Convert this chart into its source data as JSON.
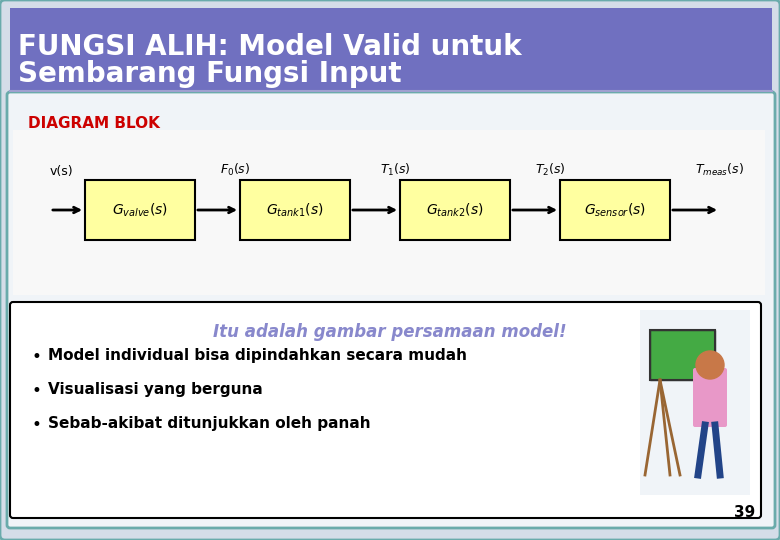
{
  "title_line1": "FUNGSI ALIH: Model Valid untuk",
  "title_line2": "Sembarang Fungsi Input",
  "title_bg_color": "#7070c0",
  "title_text_color": "#ffffff",
  "diagram_label": "DIAGRAM BLOK",
  "diagram_label_color": "#cc0000",
  "bg_color": "#ffffff",
  "outer_bg_color": "#e8e8e8",
  "slide_bg_color": "#dde8f0",
  "block_fill": "#ffffa0",
  "block_edge": "#000000",
  "arrow_color": "#000000",
  "signal_labels": [
    "v(s)",
    "F₀(s)",
    "T₁(s)",
    "T₂(s)",
    "Tₘₑₐₑ(s)"
  ],
  "block_labels": [
    "G$_{valve}$(s)",
    "G$_{tank1}$(s)",
    "G$_{tank2}$(s)",
    "G$_{sensor}$(s)"
  ],
  "highlight_text": "Itu adalah gambar persamaan model!",
  "highlight_color": "#8888cc",
  "bullet_points": [
    "Model individual bisa dipindahkan secara mudah",
    "Visualisasi yang berguna",
    "Sebab-akibat ditunjukkan oleh panah"
  ],
  "bullet_color": "#000000",
  "page_number": "39",
  "border_color": "#6aabab",
  "inner_border_color": "#000000"
}
